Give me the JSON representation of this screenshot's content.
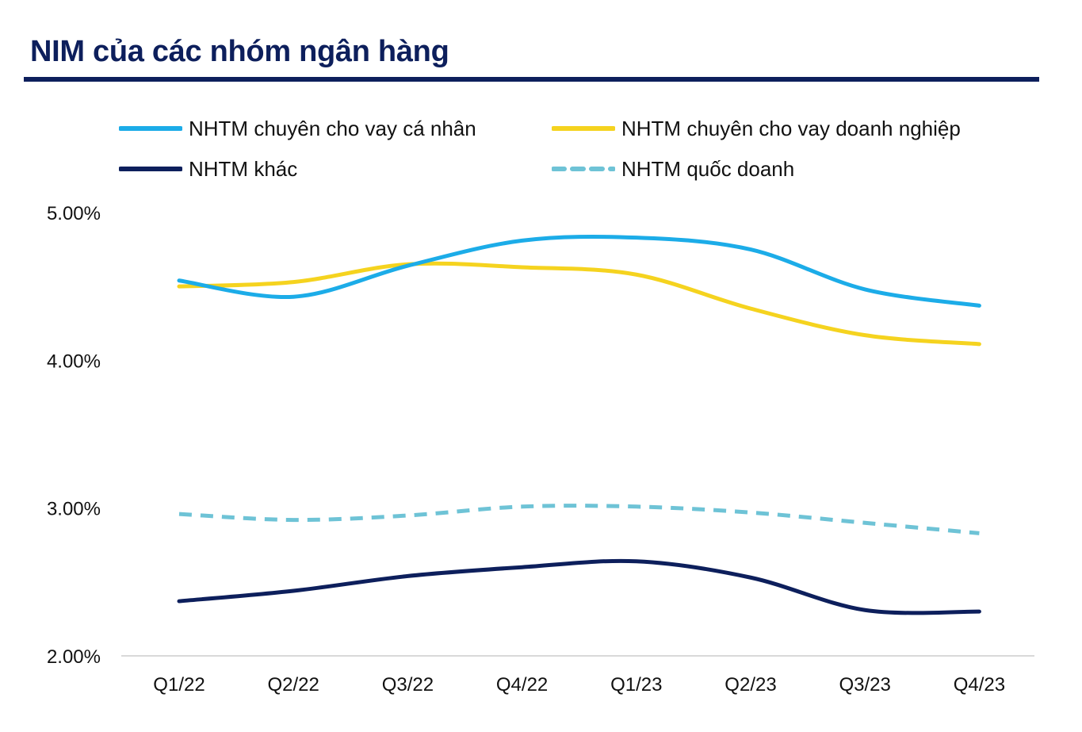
{
  "chart_data": {
    "type": "line",
    "title": "NIM của các nhóm ngân hàng",
    "categories": [
      "Q1/22",
      "Q2/22",
      "Q3/22",
      "Q4/22",
      "Q1/23",
      "Q2/23",
      "Q3/23",
      "Q4/23"
    ],
    "y_ticks": [
      "2.00%",
      "3.00%",
      "4.00%",
      "5.00%"
    ],
    "ylim": [
      2.0,
      5.0
    ],
    "y_unit": "%",
    "grid": false,
    "legend_position": "top",
    "series": [
      {
        "name": "NHTM chuyên cho vay cá nhân",
        "color": "#1cace8",
        "dash": false,
        "values": [
          4.54,
          4.43,
          4.64,
          4.81,
          4.83,
          4.75,
          4.48,
          4.37
        ]
      },
      {
        "name": "NHTM chuyên cho vay doanh nghiệp",
        "color": "#f5d31f",
        "dash": false,
        "values": [
          4.5,
          4.53,
          4.65,
          4.63,
          4.58,
          4.35,
          4.17,
          4.11
        ]
      },
      {
        "name": "NHTM khác",
        "color": "#0d1f5c",
        "dash": false,
        "values": [
          2.37,
          2.44,
          2.54,
          2.6,
          2.64,
          2.53,
          2.31,
          2.3
        ]
      },
      {
        "name": "NHTM quốc doanh",
        "color": "#6ec3d6",
        "dash": true,
        "values": [
          2.96,
          2.92,
          2.95,
          3.01,
          3.01,
          2.97,
          2.9,
          2.83
        ]
      }
    ]
  }
}
